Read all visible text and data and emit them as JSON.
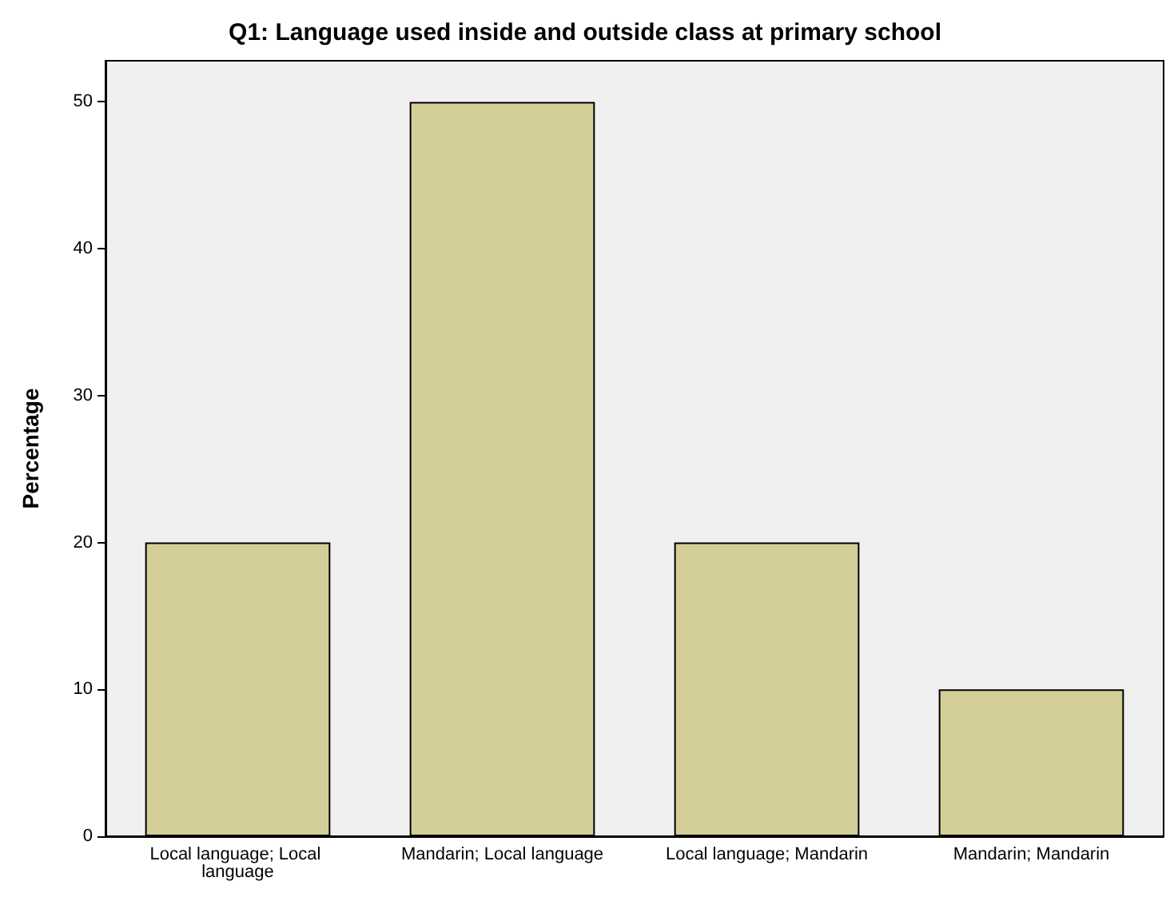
{
  "chart_data": {
    "type": "bar",
    "title": "Q1: Language used inside and outside class at primary school",
    "ylabel": "Percentage",
    "categories": [
      "Local language; Local language",
      "Mandarin; Local language",
      "Local language; Mandarin",
      "Mandarin; Mandarin"
    ],
    "values": [
      20,
      50,
      20,
      10
    ],
    "color": "#d3ce97",
    "ylim": [
      0,
      52.8
    ],
    "yticks": [
      0,
      10,
      20,
      30,
      40,
      50
    ]
  }
}
